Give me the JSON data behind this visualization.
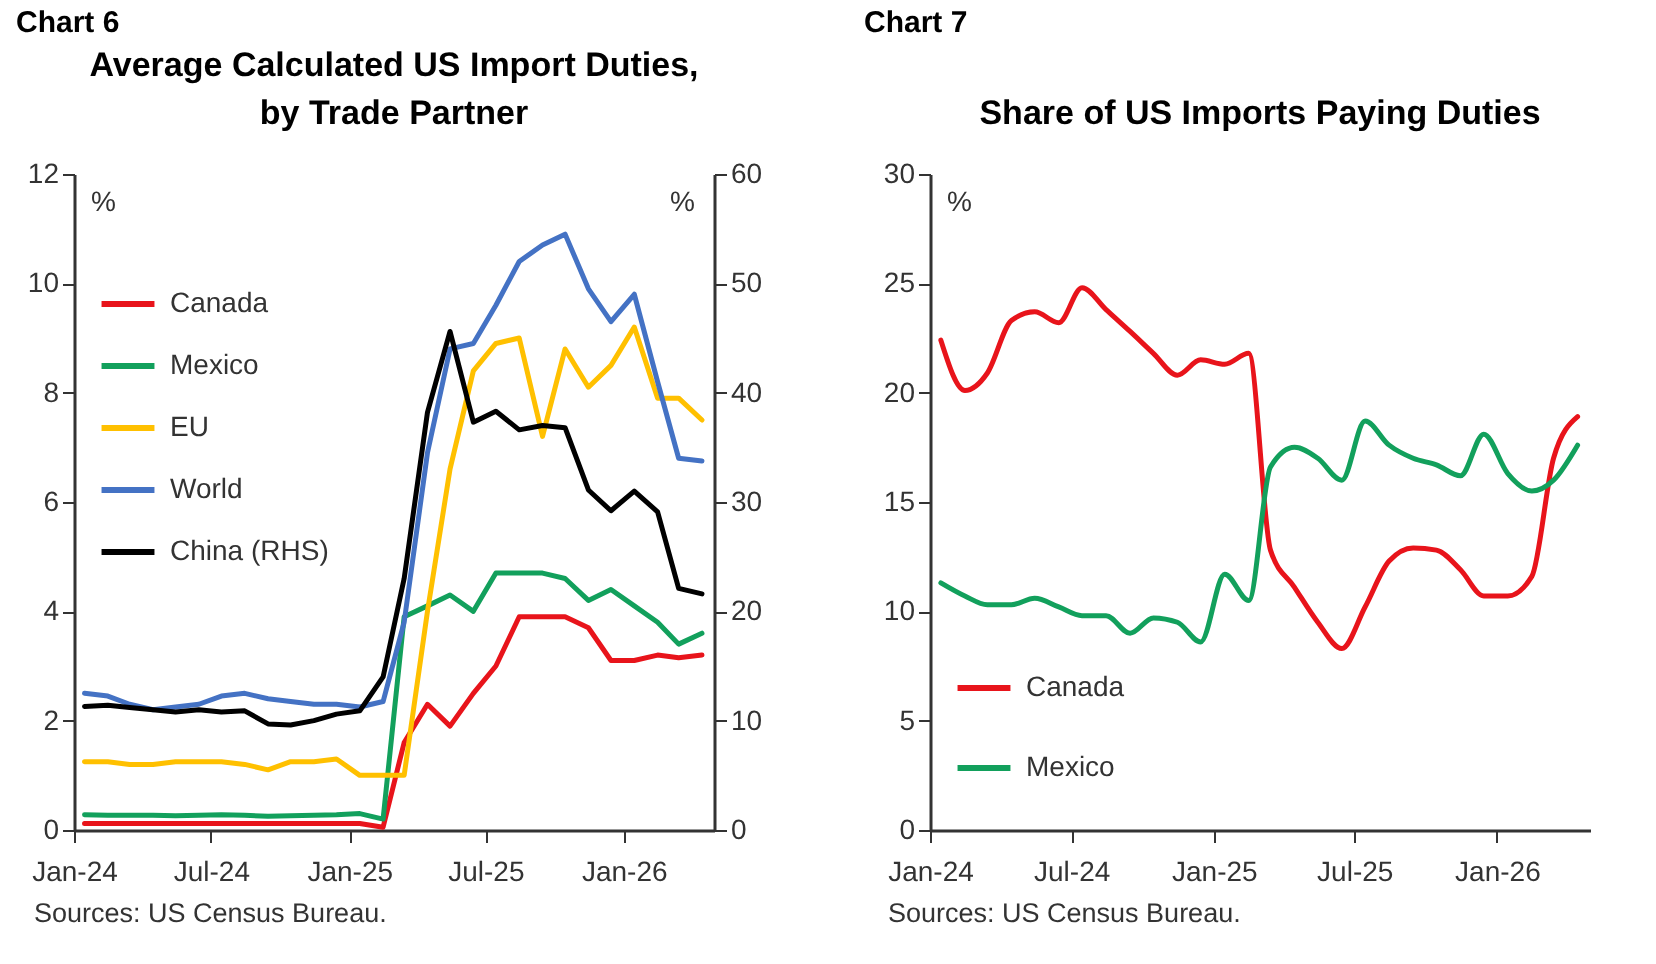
{
  "chart_data": [
    {
      "type": "line",
      "title": "Average Calculated US Import Duties, by Trade Partner",
      "ylabel": "%",
      "y2label": "%",
      "annotations": [
        "Chart 6",
        "Sources: US Census Bureau."
      ],
      "x": [
        "2024-01-15",
        "2024-02-15",
        "2024-03-15",
        "2024-04-15",
        "2024-05-15",
        "2024-06-15",
        "2024-07-15",
        "2024-08-15",
        "2024-09-15",
        "2024-10-15",
        "2024-11-15",
        "2024-12-15",
        "2025-01-15",
        "2025-02-15",
        "2025-03-15",
        "2025-04-15",
        "2025-05-15",
        "2025-06-15",
        "2025-07-15",
        "2025-08-15",
        "2025-09-15",
        "2025-10-15",
        "2025-11-15",
        "2025-12-15",
        "2026-01-15",
        "2026-02-15",
        "2026-03-15",
        "2026-04-15"
      ],
      "series": [
        {
          "name": "Canada",
          "color": "#e8141b",
          "values": [
            0.12,
            0.12,
            0.12,
            0.12,
            0.12,
            0.12,
            0.12,
            0.12,
            0.12,
            0.12,
            0.12,
            0.12,
            0.12,
            0.05,
            1.6,
            2.3,
            1.9,
            2.5,
            3.0,
            3.9,
            3.9,
            3.9,
            3.7,
            3.1,
            3.1,
            3.2,
            3.15,
            3.2
          ]
        },
        {
          "name": "Mexico",
          "color": "#12a05c",
          "values": [
            0.28,
            0.27,
            0.27,
            0.27,
            0.26,
            0.27,
            0.28,
            0.27,
            0.25,
            0.26,
            0.27,
            0.28,
            0.3,
            0.2,
            3.9,
            4.1,
            4.3,
            4.0,
            4.7,
            4.7,
            4.7,
            4.6,
            4.2,
            4.4,
            4.1,
            3.8,
            3.4,
            3.6
          ]
        },
        {
          "name": "EU",
          "color": "#ffc000",
          "values": [
            1.25,
            1.25,
            1.2,
            1.2,
            1.25,
            1.25,
            1.25,
            1.2,
            1.1,
            1.25,
            1.25,
            1.3,
            1.0,
            1.0,
            1.0,
            4.0,
            6.6,
            8.4,
            8.9,
            9.0,
            7.2,
            8.8,
            8.1,
            8.5,
            9.2,
            7.9,
            7.9,
            7.5
          ]
        },
        {
          "name": "World",
          "color": "#4472c4",
          "values": [
            2.5,
            2.45,
            2.3,
            2.2,
            2.25,
            2.3,
            2.45,
            2.5,
            2.4,
            2.35,
            2.3,
            2.3,
            2.25,
            2.35,
            3.8,
            6.9,
            8.8,
            8.9,
            9.6,
            10.4,
            10.7,
            10.9,
            9.9,
            9.3,
            9.8,
            8.2,
            6.8,
            6.75
          ]
        },
        {
          "name": "China (RHS)",
          "color": "#000000",
          "axis": "y2",
          "values": [
            11.3,
            11.4,
            11.2,
            11.0,
            10.8,
            11.0,
            10.8,
            10.9,
            9.7,
            9.6,
            10.0,
            10.6,
            10.9,
            14.0,
            23,
            38.2,
            45.6,
            37.3,
            38.3,
            36.6,
            37.0,
            36.8,
            31.1,
            29.2,
            31.0,
            29.1,
            22.1,
            21.6
          ]
        }
      ],
      "xlim": [
        "2024-01",
        "2026-05"
      ],
      "xticks": [
        {
          "value": "2024-01",
          "label": "Jan-24"
        },
        {
          "value": "2024-07",
          "label": "Jul-24"
        },
        {
          "value": "2025-01",
          "label": "Jan-25"
        },
        {
          "value": "2025-07",
          "label": "Jul-25"
        },
        {
          "value": "2026-01",
          "label": "Jan-26"
        }
      ],
      "ylim": [
        0,
        12
      ],
      "yticks": [
        0,
        2,
        4,
        6,
        8,
        10,
        12
      ],
      "y2lim": [
        0,
        60
      ],
      "y2ticks": [
        0,
        10,
        20,
        30,
        40,
        50,
        60
      ],
      "grid": false,
      "legend": "top left"
    },
    {
      "type": "line",
      "title": "Share of US Imports Paying Duties",
      "ylabel": "%",
      "annotations": [
        "Chart 7",
        "Sources: US Census Bureau."
      ],
      "x": [
        "2024-01-15",
        "2024-02-15",
        "2024-03-15",
        "2024-04-15",
        "2024-05-15",
        "2024-06-15",
        "2024-07-15",
        "2024-08-15",
        "2024-09-15",
        "2024-10-15",
        "2024-11-15",
        "2024-12-15",
        "2025-01-15",
        "2025-02-15",
        "2025-03-15",
        "2025-04-15",
        "2025-05-15",
        "2025-06-15",
        "2025-07-15",
        "2025-08-15",
        "2025-09-15",
        "2025-10-15",
        "2025-11-15",
        "2025-12-15",
        "2026-01-15",
        "2026-02-15",
        "2026-03-15",
        "2026-04-15"
      ],
      "series": [
        {
          "name": "Canada",
          "color": "#e8141b",
          "values": [
            22.4,
            20.1,
            20.9,
            23.3,
            23.7,
            23.2,
            24.8,
            23.8,
            22.8,
            21.8,
            20.8,
            21.5,
            21.3,
            21.8,
            12.8,
            11.1,
            9.5,
            8.3,
            10.2,
            12.3,
            12.9,
            12.8,
            11.9,
            10.7,
            10.7,
            11.6,
            17.0,
            18.9
          ]
        },
        {
          "name": "Mexico",
          "color": "#12a05c",
          "values": [
            11.3,
            10.7,
            10.3,
            10.3,
            10.6,
            10.2,
            9.8,
            9.8,
            9.0,
            9.7,
            9.5,
            8.6,
            11.7,
            10.5,
            16.6,
            17.5,
            17.0,
            16.0,
            18.7,
            17.6,
            17.0,
            16.7,
            16.2,
            18.1,
            16.3,
            15.5,
            16.0,
            17.6
          ]
        }
      ],
      "xlim": [
        "2024-01",
        "2026-05"
      ],
      "xticks": [
        {
          "value": "2024-01",
          "label": "Jan-24"
        },
        {
          "value": "2024-07",
          "label": "Jul-24"
        },
        {
          "value": "2025-01",
          "label": "Jan-25"
        },
        {
          "value": "2025-07",
          "label": "Jul-25"
        },
        {
          "value": "2026-01",
          "label": "Jan-26"
        }
      ],
      "ylim": [
        0,
        30
      ],
      "yticks": [
        0,
        5,
        10,
        15,
        20,
        25,
        30
      ],
      "grid": false,
      "legend": "bottom left"
    }
  ]
}
